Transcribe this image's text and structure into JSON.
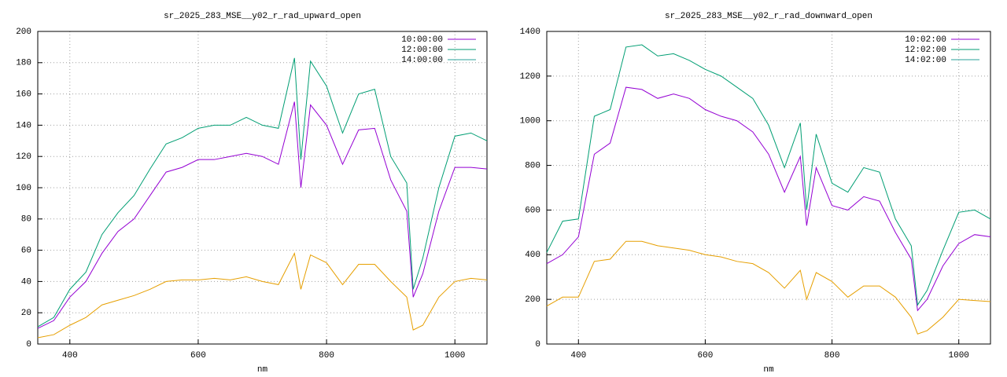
{
  "chart_data": [
    {
      "type": "line",
      "title": "sr_2025_283_MSE__y02_r_rad_upward_open",
      "xlabel": "nm",
      "xlim": [
        350,
        1050
      ],
      "xticks": [
        400,
        600,
        800,
        1000
      ],
      "ylim": [
        0,
        200
      ],
      "yticks": [
        0,
        20,
        40,
        60,
        80,
        100,
        120,
        140,
        160,
        180,
        200
      ],
      "grid": true,
      "legend": "upper right",
      "x": [
        350,
        375,
        400,
        425,
        450,
        475,
        500,
        525,
        550,
        575,
        600,
        625,
        650,
        675,
        700,
        725,
        750,
        760,
        775,
        800,
        825,
        850,
        875,
        900,
        925,
        935,
        950,
        975,
        1000,
        1025,
        1050
      ],
      "series": [
        {
          "name": "10:00:00",
          "color": "#9400d3",
          "values": [
            10,
            15,
            30,
            40,
            58,
            72,
            80,
            95,
            110,
            113,
            118,
            118,
            120,
            122,
            120,
            115,
            155,
            100,
            153,
            140,
            115,
            137,
            138,
            105,
            85,
            30,
            45,
            85,
            113,
            113,
            112
          ]
        },
        {
          "name": "12:00:00",
          "color": "#009e73",
          "values": [
            11,
            17,
            35,
            46,
            70,
            84,
            95,
            112,
            128,
            132,
            138,
            140,
            140,
            145,
            140,
            138,
            183,
            118,
            181,
            165,
            135,
            160,
            163,
            120,
            103,
            35,
            55,
            100,
            133,
            135,
            130
          ]
        },
        {
          "name": "14:00:00",
          "color": "#e69f00",
          "legend_color": "#2aa198",
          "values": [
            4,
            6,
            12,
            17,
            25,
            28,
            31,
            35,
            40,
            41,
            41,
            42,
            41,
            43,
            40,
            38,
            58,
            35,
            57,
            52,
            38,
            51,
            51,
            40,
            30,
            9,
            12,
            30,
            40,
            42,
            41
          ]
        }
      ]
    },
    {
      "type": "line",
      "title": "sr_2025_283_MSE__y02_r_rad_downward_open",
      "xlabel": "nm",
      "xlim": [
        350,
        1050
      ],
      "xticks": [
        400,
        600,
        800,
        1000
      ],
      "ylim": [
        0,
        1400
      ],
      "yticks": [
        0,
        200,
        400,
        600,
        800,
        1000,
        1200,
        1400
      ],
      "grid": true,
      "legend": "upper right",
      "x": [
        350,
        375,
        400,
        425,
        450,
        475,
        500,
        525,
        550,
        575,
        600,
        625,
        650,
        675,
        700,
        725,
        750,
        760,
        775,
        800,
        825,
        850,
        875,
        900,
        925,
        935,
        950,
        975,
        1000,
        1025,
        1050
      ],
      "series": [
        {
          "name": "10:02:00",
          "color": "#9400d3",
          "values": [
            360,
            400,
            480,
            850,
            900,
            1150,
            1140,
            1100,
            1120,
            1100,
            1050,
            1020,
            1000,
            950,
            850,
            680,
            840,
            530,
            790,
            620,
            600,
            660,
            640,
            500,
            380,
            150,
            200,
            350,
            450,
            490,
            480
          ]
        },
        {
          "name": "12:02:00",
          "color": "#009e73",
          "values": [
            410,
            550,
            560,
            1020,
            1050,
            1330,
            1340,
            1290,
            1300,
            1270,
            1230,
            1200,
            1150,
            1100,
            980,
            790,
            990,
            600,
            940,
            720,
            680,
            790,
            770,
            560,
            440,
            175,
            240,
            420,
            590,
            600,
            560
          ]
        },
        {
          "name": "14:02:00",
          "color": "#e69f00",
          "legend_color": "#2aa198",
          "values": [
            170,
            210,
            210,
            370,
            380,
            460,
            460,
            440,
            430,
            420,
            400,
            390,
            370,
            360,
            320,
            250,
            330,
            200,
            320,
            280,
            210,
            260,
            260,
            210,
            120,
            45,
            60,
            120,
            200,
            195,
            190
          ]
        }
      ]
    }
  ]
}
